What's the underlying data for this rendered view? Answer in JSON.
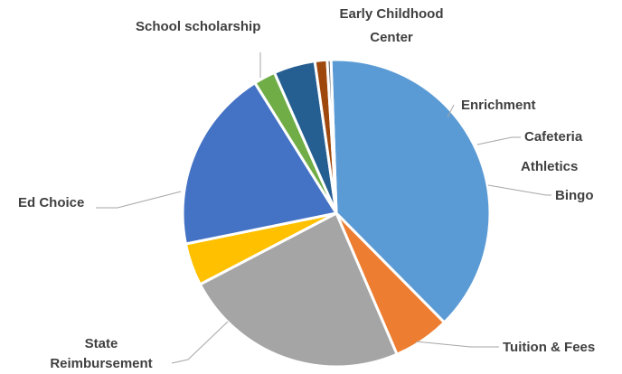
{
  "chart_data": {
    "type": "pie",
    "title": "",
    "legend": "none",
    "start_angle_deg": 92,
    "slices": [
      {
        "name": "Tuition & Fees",
        "value": 38.5,
        "color": "#5b9bd5"
      },
      {
        "name": "State Reimbursement",
        "value": 6.0,
        "color": "#ed7d31"
      },
      {
        "name": "Ed Choice",
        "value": 24.0,
        "color": "#a5a5a5"
      },
      {
        "name": "School scholarship",
        "value": 4.5,
        "color": "#ffc000"
      },
      {
        "name": "Early Childhood Center",
        "value": 19.5,
        "color": "#4472c4"
      },
      {
        "name": "Enrichment",
        "value": 2.3,
        "color": "#70ad47"
      },
      {
        "name": "Cafeteria",
        "value": 4.4,
        "color": "#255e91"
      },
      {
        "name": "Athletics",
        "value": 1.3,
        "color": "#9e480e"
      },
      {
        "name": "Bingo",
        "value": 0.4,
        "color": "#636363"
      }
    ]
  },
  "labels": {
    "tuition": "Tuition & Fees",
    "state_line1": "State",
    "state_line2": "Reimbursement",
    "edchoice": "Ed Choice",
    "scholarship": "School scholarship",
    "ecc_line1": "Early Childhood",
    "ecc_line2": "Center",
    "enrichment": "Enrichment",
    "cafeteria": "Cafeteria",
    "athletics": "Athletics",
    "bingo": "Bingo"
  }
}
